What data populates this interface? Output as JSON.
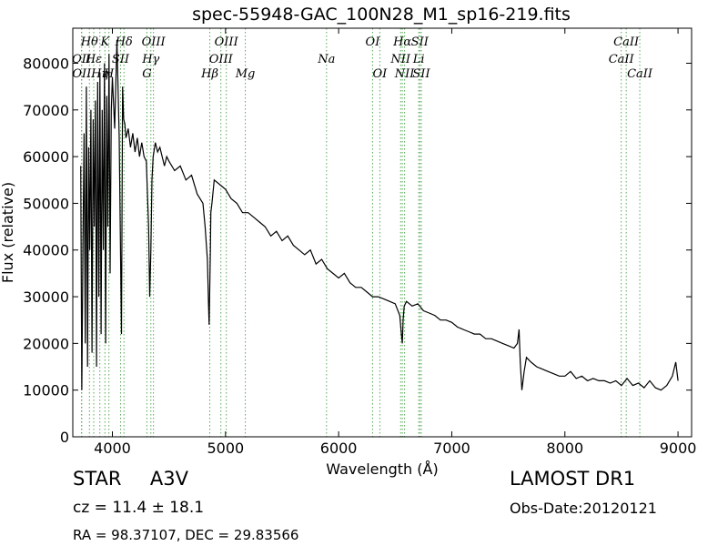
{
  "chart_data": {
    "type": "line",
    "title": "spec-55948-GAC_100N28_M1_sp16-219.fits",
    "xlabel": "Wavelength (Å)",
    "ylabel": "Flux (relative)",
    "xlim": [
      3650,
      9120
    ],
    "ylim": [
      0,
      87500
    ],
    "xticks": [
      4000,
      5000,
      6000,
      7000,
      8000,
      9000
    ],
    "yticks": [
      0,
      10000,
      20000,
      30000,
      40000,
      50000,
      60000,
      70000,
      80000
    ],
    "line_color": "#000000",
    "marker_color": "#55aa55",
    "series": [
      {
        "x": [
          3720,
          3730,
          3740,
          3750,
          3760,
          3770,
          3780,
          3790,
          3800,
          3810,
          3820,
          3830,
          3840,
          3850,
          3860,
          3870,
          3880,
          3890,
          3900,
          3910,
          3920,
          3930,
          3940,
          3950,
          3960,
          3970,
          3980,
          3990,
          4000,
          4020,
          4040,
          4060,
          4080,
          4090,
          4100,
          4110,
          4120,
          4140,
          4160,
          4180,
          4200,
          4220,
          4240,
          4260,
          4280,
          4300,
          4320,
          4330,
          4340,
          4350,
          4360,
          4380,
          4400,
          4420,
          4440,
          4460,
          4480,
          4500,
          4550,
          4600,
          4650,
          4700,
          4750,
          4800,
          4820,
          4840,
          4850,
          4855,
          4861,
          4866,
          4870,
          4880,
          4900,
          4950,
          5000,
          5050,
          5100,
          5150,
          5200,
          5250,
          5300,
          5350,
          5400,
          5450,
          5500,
          5550,
          5600,
          5650,
          5700,
          5750,
          5800,
          5850,
          5900,
          5950,
          6000,
          6050,
          6100,
          6150,
          6200,
          6250,
          6300,
          6350,
          6400,
          6450,
          6500,
          6540,
          6555,
          6563,
          6570,
          6580,
          6600,
          6650,
          6700,
          6750,
          6800,
          6850,
          6900,
          6950,
          7000,
          7050,
          7100,
          7150,
          7200,
          7250,
          7300,
          7350,
          7400,
          7450,
          7500,
          7550,
          7580,
          7595,
          7605,
          7620,
          7640,
          7660,
          7700,
          7750,
          7800,
          7850,
          7900,
          7950,
          8000,
          8050,
          8100,
          8150,
          8200,
          8250,
          8300,
          8350,
          8400,
          8450,
          8500,
          8550,
          8600,
          8650,
          8700,
          8750,
          8800,
          8850,
          8900,
          8950,
          8980,
          9000
        ],
        "y": [
          58000,
          10000,
          42000,
          65000,
          20000,
          75000,
          15000,
          62000,
          40000,
          70000,
          18000,
          68000,
          45000,
          72000,
          15000,
          76000,
          30000,
          78000,
          22000,
          70000,
          40000,
          80000,
          20000,
          73000,
          45000,
          82000,
          35000,
          70000,
          77000,
          66000,
          85000,
          64000,
          22000,
          75000,
          68000,
          67000,
          64000,
          66000,
          62000,
          65000,
          61000,
          64000,
          60000,
          63000,
          60000,
          59000,
          45000,
          30000,
          40000,
          55000,
          60000,
          63000,
          61000,
          62000,
          60000,
          58000,
          60000,
          59000,
          57000,
          58000,
          55000,
          56000,
          52000,
          50000,
          45000,
          38000,
          28000,
          24000,
          32000,
          40000,
          48000,
          50000,
          55000,
          54000,
          53000,
          51000,
          50000,
          48000,
          48000,
          47000,
          46000,
          45000,
          43000,
          44000,
          42000,
          43000,
          41000,
          40000,
          39000,
          40000,
          37000,
          38000,
          36000,
          35000,
          34000,
          35000,
          33000,
          32000,
          32000,
          31000,
          30000,
          30000,
          29500,
          29000,
          28500,
          26000,
          22000,
          20000,
          25000,
          28000,
          29000,
          28000,
          28500,
          27000,
          26500,
          26000,
          25000,
          25000,
          24500,
          23500,
          23000,
          22500,
          22000,
          22000,
          21000,
          21000,
          20500,
          20000,
          19500,
          19000,
          20000,
          23000,
          16000,
          10000,
          14000,
          17000,
          16000,
          15000,
          14500,
          14000,
          13500,
          13000,
          13000,
          14000,
          12500,
          13000,
          12000,
          12500,
          12000,
          12000,
          11500,
          12000,
          11000,
          12500,
          11000,
          11500,
          10500,
          12000,
          10500,
          10000,
          11000,
          13000,
          16000,
          12000
        ]
      }
    ],
    "spectral_lines": [
      {
        "label": "Hθ",
        "x": 3797,
        "row": 1
      },
      {
        "label": "K",
        "x": 3934,
        "row": 1
      },
      {
        "label": "Hδ",
        "x": 4102,
        "row": 1
      },
      {
        "label": "OIII",
        "x": 4363,
        "row": 1
      },
      {
        "label": "OIII",
        "x": 5007,
        "row": 1
      },
      {
        "label": "OI",
        "x": 6300,
        "row": 1
      },
      {
        "label": "Hα",
        "x": 6563,
        "row": 1
      },
      {
        "label": "SII",
        "x": 6717,
        "row": 1
      },
      {
        "label": "CaII",
        "x": 8542,
        "row": 1
      },
      {
        "label": "OII",
        "x": 3727,
        "row": 2
      },
      {
        "label": "Hε",
        "x": 3835,
        "row": 2
      },
      {
        "label": "SII",
        "x": 4072,
        "row": 2
      },
      {
        "label": "Hγ",
        "x": 4340,
        "row": 2
      },
      {
        "label": "OIII",
        "x": 4959,
        "row": 2
      },
      {
        "label": "Na",
        "x": 5893,
        "row": 2
      },
      {
        "label": "NII",
        "x": 6548,
        "row": 2
      },
      {
        "label": "Li",
        "x": 6708,
        "row": 2
      },
      {
        "label": "CaII",
        "x": 8498,
        "row": 2
      },
      {
        "label": "OII",
        "x": 3729,
        "row": 3
      },
      {
        "label": "Hη",
        "x": 3889,
        "row": 3
      },
      {
        "label": "H",
        "x": 3969,
        "row": 3
      },
      {
        "label": "G",
        "x": 4305,
        "row": 3
      },
      {
        "label": "Hβ",
        "x": 4861,
        "row": 3
      },
      {
        "label": "Mg",
        "x": 5175,
        "row": 3
      },
      {
        "label": "OI",
        "x": 6364,
        "row": 3
      },
      {
        "label": "NII",
        "x": 6583,
        "row": 3
      },
      {
        "label": "SII",
        "x": 6731,
        "row": 3
      },
      {
        "label": "CaII",
        "x": 8662,
        "row": 3
      }
    ]
  },
  "info": {
    "object_class": "STAR",
    "subclass": "A3V",
    "survey": "LAMOST DR1",
    "cz_text": "cz = 11.4",
    "cz_error": "± 18.1",
    "obs_date": "Obs-Date:20120121",
    "coords": "RA = 98.37107, DEC = 29.83566"
  }
}
